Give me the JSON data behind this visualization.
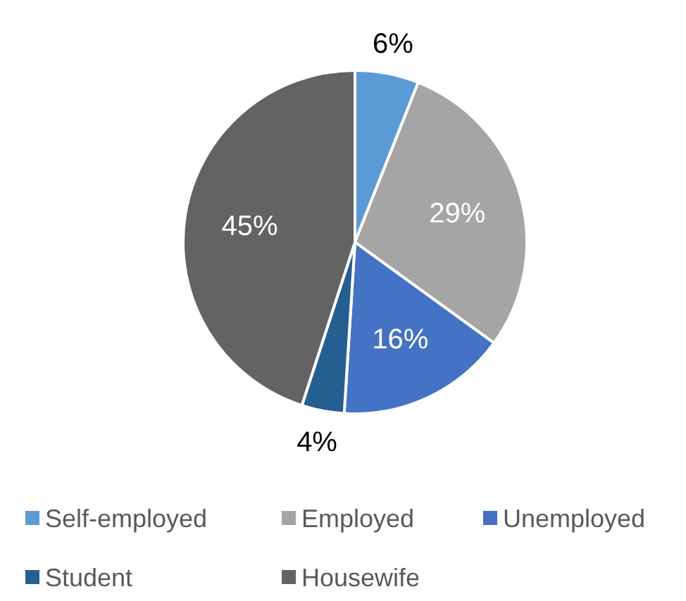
{
  "chart_data": {
    "type": "pie",
    "categories": [
      "Self-employed",
      "Employed",
      "Unemployed",
      "Student",
      "Housewife"
    ],
    "values": [
      6,
      29,
      16,
      4,
      45
    ],
    "colors": [
      "#5b9bd5",
      "#a5a5a5",
      "#4472c4",
      "#255e91",
      "#636363"
    ],
    "value_labels": [
      "6%",
      "29%",
      "16%",
      "4%",
      "45%"
    ],
    "legend": "bottom"
  }
}
